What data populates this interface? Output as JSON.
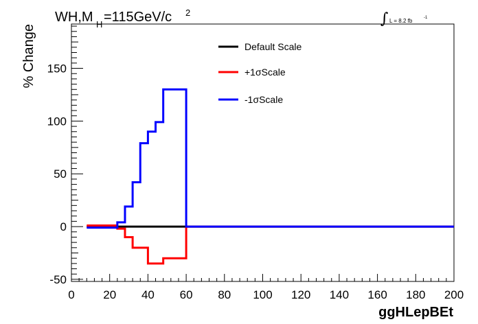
{
  "chart_data": {
    "type": "line",
    "title": {
      "main": "WH,M",
      "subscript": "H",
      "value": "=115GeV/c",
      "superscript": "2"
    },
    "luminosity": {
      "integral_symbol": "∫",
      "text": "L = 8.2 fb",
      "superscript": "-1"
    },
    "xlabel": "ggHLepBEt",
    "ylabel": "% Change",
    "xlim": [
      0,
      200
    ],
    "ylim": [
      -52,
      192
    ],
    "x_ticks": [
      "0",
      "20",
      "40",
      "60",
      "80",
      "100",
      "120",
      "140",
      "160",
      "180",
      "200"
    ],
    "y_ticks": [
      "-50",
      "0",
      "50",
      "100",
      "150"
    ],
    "legend_position": "top-center",
    "bin_edges": [
      8,
      12,
      16,
      20,
      24,
      28,
      32,
      36,
      40,
      44,
      48,
      52,
      56,
      60,
      200
    ],
    "series": [
      {
        "name": "Default Scale",
        "color": "#000000",
        "values": [
          0,
          0,
          0,
          0,
          0,
          0,
          0,
          0,
          0,
          0,
          0,
          0,
          0,
          0
        ]
      },
      {
        "name": "+1σScale",
        "color": "#ff0000",
        "values": [
          1,
          1,
          1,
          1,
          -2,
          -10,
          -20,
          -20,
          -35,
          -35,
          -30,
          -30,
          -30,
          0
        ]
      },
      {
        "name": "-1σScale",
        "color": "#0000ff",
        "values": [
          -1,
          -1,
          -1,
          -1,
          4,
          19,
          42,
          79,
          90,
          99,
          130,
          130,
          130,
          0
        ]
      }
    ]
  }
}
